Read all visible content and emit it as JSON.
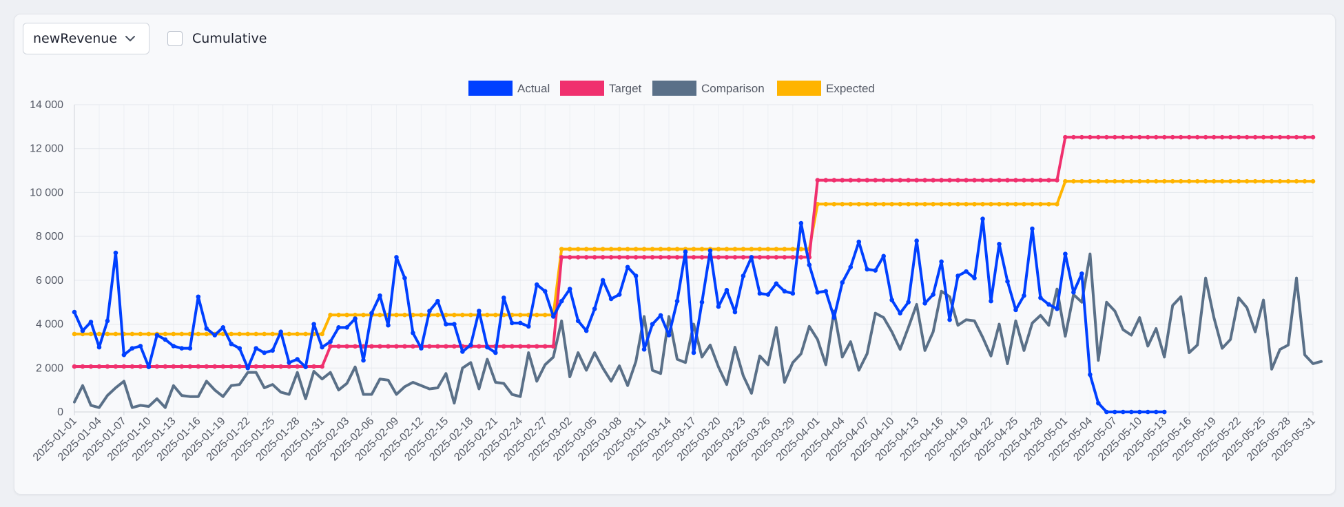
{
  "controls": {
    "metric_select_value": "newRevenue",
    "cumulative_label": "Cumulative",
    "cumulative_checked": false
  },
  "chart_data": {
    "type": "line",
    "x_start": "2025-01-01",
    "x_end": "2025-05-31",
    "x_tick_labels": [
      "2025-01-01",
      "2025-01-04",
      "2025-01-07",
      "2025-01-10",
      "2025-01-13",
      "2025-01-16",
      "2025-01-19",
      "2025-01-22",
      "2025-01-25",
      "2025-01-28",
      "2025-01-31",
      "2025-02-03",
      "2025-02-06",
      "2025-02-09",
      "2025-02-12",
      "2025-02-15",
      "2025-02-18",
      "2025-02-21",
      "2025-02-24",
      "2025-02-27",
      "2025-03-02",
      "2025-03-05",
      "2025-03-08",
      "2025-03-11",
      "2025-03-14",
      "2025-03-17",
      "2025-03-20",
      "2025-03-23",
      "2025-03-26",
      "2025-03-29",
      "2025-04-01",
      "2025-04-04",
      "2025-04-07",
      "2025-04-10",
      "2025-04-13",
      "2025-04-16",
      "2025-04-19",
      "2025-04-22",
      "2025-04-25",
      "2025-04-28",
      "2025-05-01",
      "2025-05-04",
      "2025-05-07",
      "2025-05-10",
      "2025-05-13",
      "2025-05-16",
      "2025-05-19",
      "2025-05-22",
      "2025-05-25",
      "2025-05-28",
      "2025-05-31"
    ],
    "y_tick_labels": [
      "0",
      "2 000",
      "4 000",
      "6 000",
      "8 000",
      "10 000",
      "12 000",
      "14 000"
    ],
    "ylim": [
      0,
      14000
    ],
    "grid": true,
    "legend_position": "top-center",
    "series": [
      {
        "name": "Actual",
        "color": "#0040ff",
        "values": [
          4550,
          3700,
          4100,
          2950,
          4150,
          7250,
          2600,
          2900,
          3000,
          2050,
          3500,
          3300,
          3000,
          2900,
          2900,
          5250,
          3800,
          3500,
          3850,
          3100,
          2900,
          2000,
          2900,
          2700,
          2800,
          3650,
          2250,
          2400,
          2050,
          4000,
          2950,
          3200,
          3850,
          3850,
          4250,
          2350,
          4500,
          5300,
          3950,
          7050,
          6100,
          3600,
          2900,
          4600,
          5050,
          4000,
          4000,
          2750,
          3050,
          4600,
          2950,
          2700,
          5200,
          4050,
          4050,
          3900,
          5800,
          5500,
          4350,
          5050,
          5600,
          4150,
          3700,
          4700,
          6000,
          5150,
          5350,
          6600,
          6200,
          2850,
          4000,
          4400,
          3500,
          5050,
          7300,
          2700,
          5000,
          7350,
          4800,
          5550,
          4550,
          6200,
          7050,
          5400,
          5350,
          5850,
          5500,
          5400,
          8600,
          6700,
          5450,
          5500,
          4300,
          5900,
          6600,
          7750,
          6500,
          6450,
          7100,
          5100,
          4500,
          5000,
          7800,
          4950,
          5350,
          6850,
          4200,
          6200,
          6400,
          6100,
          8800,
          5050,
          7650,
          5950,
          4650,
          5300,
          8350,
          5200,
          4900,
          4700,
          7200,
          5450,
          6300,
          1700,
          400,
          0,
          0,
          0,
          0,
          0,
          0,
          0,
          0
        ]
      },
      {
        "name": "Target",
        "color": "#f0306e",
        "values": [
          2070,
          2070,
          2070,
          2070,
          2070,
          2070,
          2070,
          2070,
          2070,
          2070,
          2070,
          2070,
          2070,
          2070,
          2070,
          2070,
          2070,
          2070,
          2070,
          2070,
          2070,
          2070,
          2070,
          2070,
          2070,
          2070,
          2070,
          2070,
          2070,
          2070,
          2070,
          2990,
          2990,
          2990,
          2990,
          2990,
          2990,
          2990,
          2990,
          2990,
          2990,
          2990,
          2990,
          2990,
          2990,
          2990,
          2990,
          2990,
          2990,
          2990,
          2990,
          2990,
          2990,
          2990,
          2990,
          2990,
          2990,
          2990,
          2990,
          7050,
          7050,
          7050,
          7050,
          7050,
          7050,
          7050,
          7050,
          7050,
          7050,
          7050,
          7050,
          7050,
          7050,
          7050,
          7050,
          7050,
          7050,
          7050,
          7050,
          7050,
          7050,
          7050,
          7050,
          7050,
          7050,
          7050,
          7050,
          7050,
          7050,
          7050,
          10560,
          10560,
          10560,
          10560,
          10560,
          10560,
          10560,
          10560,
          10560,
          10560,
          10560,
          10560,
          10560,
          10560,
          10560,
          10560,
          10560,
          10560,
          10560,
          10560,
          10560,
          10560,
          10560,
          10560,
          10560,
          10560,
          10560,
          10560,
          10560,
          10560,
          12520,
          12520,
          12520,
          12520,
          12520,
          12520,
          12520,
          12520,
          12520,
          12520,
          12520,
          12520,
          12520,
          12520,
          12520,
          12520,
          12520,
          12520,
          12520,
          12520,
          12520,
          12520,
          12520,
          12520,
          12520,
          12520,
          12520,
          12520,
          12520,
          12520,
          12520
        ]
      },
      {
        "name": "Comparison",
        "color": "#5a7088",
        "values": [
          450,
          1200,
          300,
          200,
          750,
          1100,
          1400,
          200,
          300,
          250,
          600,
          200,
          1200,
          750,
          700,
          700,
          1400,
          1000,
          700,
          1200,
          1250,
          1800,
          1800,
          1100,
          1250,
          900,
          800,
          1800,
          600,
          1850,
          1500,
          1800,
          1000,
          1300,
          2050,
          800,
          800,
          1500,
          1450,
          800,
          1150,
          1350,
          1200,
          1050,
          1100,
          1750,
          400,
          2000,
          2250,
          1050,
          2400,
          1350,
          1300,
          800,
          700,
          2700,
          1400,
          2150,
          2500,
          4150,
          1600,
          2700,
          1900,
          2700,
          2000,
          1400,
          2100,
          1200,
          2300,
          4350,
          1900,
          1750,
          4350,
          2400,
          2250,
          4000,
          2500,
          3050,
          2050,
          1250,
          2950,
          1650,
          850,
          2550,
          2150,
          3850,
          1350,
          2250,
          2650,
          3900,
          3300,
          2150,
          4600,
          2500,
          3200,
          1900,
          2650,
          4500,
          4300,
          3650,
          2850,
          3850,
          4900,
          2800,
          3650,
          5500,
          5250,
          3950,
          4200,
          4150,
          3400,
          2550,
          4000,
          2200,
          4150,
          2800,
          4050,
          4400,
          3950,
          5600,
          3450,
          5350,
          5000,
          7200,
          2350,
          5000,
          4600,
          3750,
          3500,
          4300,
          3000,
          3800,
          2500,
          4850,
          5250,
          2700,
          3050,
          6100,
          4300,
          2900,
          3300,
          5200,
          4750,
          3650,
          5100,
          1950,
          2850,
          3050,
          6100,
          2600,
          2200,
          2300
        ]
      },
      {
        "name": "Expected",
        "color": "#ffb400",
        "values": [
          3550,
          3550,
          3550,
          3550,
          3550,
          3550,
          3550,
          3550,
          3550,
          3550,
          3550,
          3550,
          3550,
          3550,
          3550,
          3550,
          3550,
          3550,
          3550,
          3550,
          3550,
          3550,
          3550,
          3550,
          3550,
          3550,
          3550,
          3550,
          3550,
          3550,
          3550,
          4420,
          4420,
          4420,
          4420,
          4420,
          4420,
          4420,
          4420,
          4420,
          4420,
          4420,
          4420,
          4420,
          4420,
          4420,
          4420,
          4420,
          4420,
          4420,
          4420,
          4420,
          4420,
          4420,
          4420,
          4420,
          4420,
          4420,
          4420,
          7420,
          7420,
          7420,
          7420,
          7420,
          7420,
          7420,
          7420,
          7420,
          7420,
          7420,
          7420,
          7420,
          7420,
          7420,
          7420,
          7420,
          7420,
          7420,
          7420,
          7420,
          7420,
          7420,
          7420,
          7420,
          7420,
          7420,
          7420,
          7420,
          7420,
          7420,
          9470,
          9470,
          9470,
          9470,
          9470,
          9470,
          9470,
          9470,
          9470,
          9470,
          9470,
          9470,
          9470,
          9470,
          9470,
          9470,
          9470,
          9470,
          9470,
          9470,
          9470,
          9470,
          9470,
          9470,
          9470,
          9470,
          9470,
          9470,
          9470,
          9470,
          10510,
          10510,
          10510,
          10510,
          10510,
          10510,
          10510,
          10510,
          10510,
          10510,
          10510,
          10510,
          10510,
          10510,
          10510,
          10510,
          10510,
          10510,
          10510,
          10510,
          10510,
          10510,
          10510,
          10510,
          10510,
          10510,
          10510,
          10510,
          10510,
          10510,
          10510
        ]
      }
    ]
  }
}
